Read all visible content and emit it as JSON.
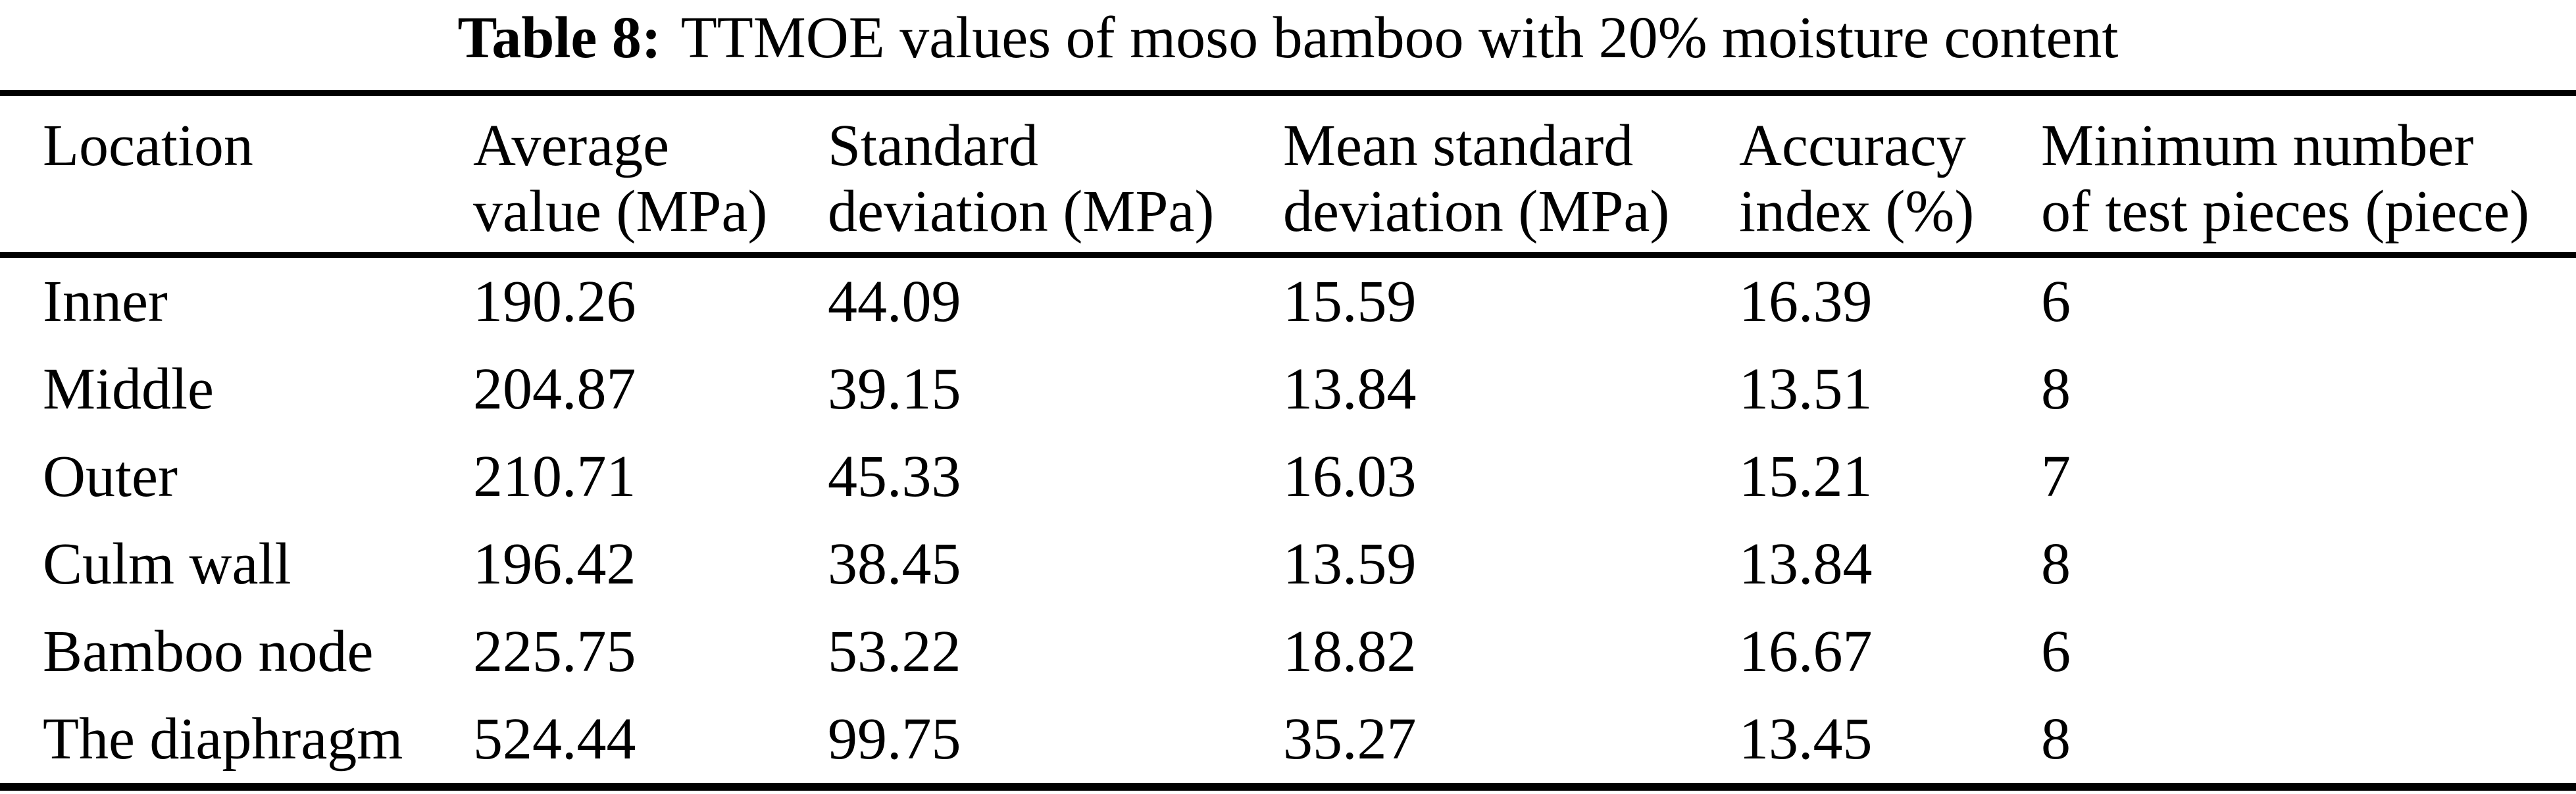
{
  "caption": {
    "label": "Table 8:",
    "text": "TTMOE values of moso bamboo with 20% moisture content"
  },
  "colors": {
    "text": "#000000",
    "background": "#ffffff",
    "rule": "#000000"
  },
  "table": {
    "headers": [
      {
        "line1": "Location",
        "line2": ""
      },
      {
        "line1": "Average",
        "line2": "value (MPa)"
      },
      {
        "line1": "Standard",
        "line2": "deviation (MPa)"
      },
      {
        "line1": "Mean standard",
        "line2": "deviation (MPa)"
      },
      {
        "line1": "Accuracy",
        "line2": "index (%)"
      },
      {
        "line1": "Minimum number",
        "line2": "of test pieces (piece)"
      }
    ],
    "rows": [
      [
        "Inner",
        "190.26",
        "44.09",
        "15.59",
        "16.39",
        "6"
      ],
      [
        "Middle",
        "204.87",
        "39.15",
        "13.84",
        "13.51",
        "8"
      ],
      [
        "Outer",
        "210.71",
        "45.33",
        "16.03",
        "15.21",
        "7"
      ],
      [
        "Culm wall",
        "196.42",
        "38.45",
        "13.59",
        "13.84",
        "8"
      ],
      [
        "Bamboo node",
        "225.75",
        "53.22",
        "18.82",
        "16.67",
        "6"
      ],
      [
        "The diaphragm",
        "524.44",
        "99.75",
        "35.27",
        "13.45",
        "8"
      ]
    ]
  }
}
